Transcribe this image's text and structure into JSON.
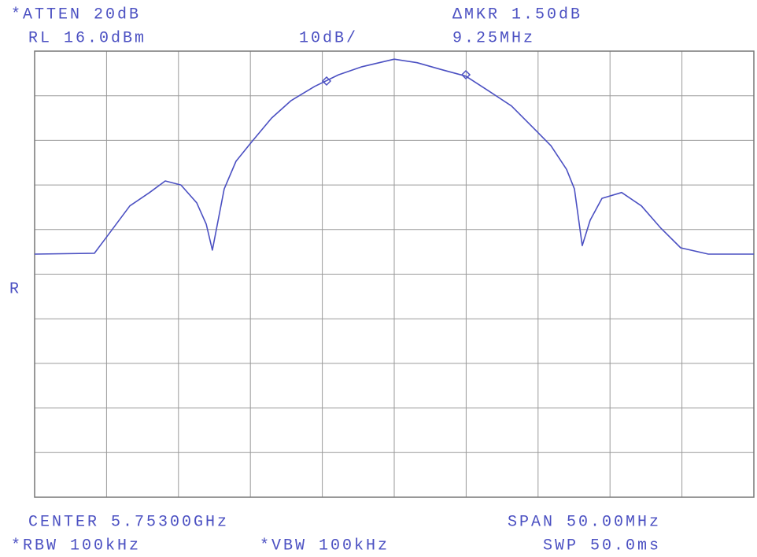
{
  "chart_data": {
    "type": "line",
    "header": {
      "atten": "*ATTEN 20dB",
      "delta_marker": "ΔMKR 1.50dB",
      "ref_level": "RL 16.0dBm",
      "scale": "10dB/",
      "marker_freq": "9.25MHz",
      "ref_mark": "R"
    },
    "footer": {
      "center": "CENTER 5.75300GHz",
      "span": "SPAN 50.00MHz",
      "rbw": "*RBW 100kHz",
      "vbw": "*VBW 100kHz",
      "sweep": "SWP 50.0ms"
    },
    "x": [
      5728,
      5732.16,
      5733.25,
      5734.62,
      5735.99,
      5737.08,
      5738.17,
      5739.27,
      5739.93,
      5740.36,
      5741.18,
      5742.0,
      5743.1,
      5744.47,
      5745.83,
      5747.47,
      5749.12,
      5750.76,
      5753.0,
      5754.59,
      5756.23,
      5757.98,
      5759.51,
      5761.15,
      5762.79,
      5763.89,
      5764.98,
      5765.53,
      5766.07,
      5766.62,
      5767.44,
      5768.81,
      5770.18,
      5771.54,
      5772.91,
      5774.83,
      5778
    ],
    "series": [
      {
        "color": "#4b50c2",
        "values": [
          -29.5,
          -29.3,
          -24.6,
          -18.7,
          -15.7,
          -13.1,
          -14.0,
          -18.0,
          -22.8,
          -28.6,
          -14.9,
          -8.7,
          -4.3,
          1.0,
          4.9,
          8.1,
          10.7,
          12.5,
          14.2,
          13.4,
          11.9,
          10.4,
          7.2,
          3.7,
          -1.6,
          -5.2,
          -10.5,
          -14.9,
          -27.6,
          -21.9,
          -17.0,
          -15.7,
          -18.7,
          -23.7,
          -28.1,
          -29.5,
          -29.5
        ]
      }
    ],
    "xlim": [
      5728,
      5778
    ],
    "ylim": [
      -84,
      16
    ],
    "grid": {
      "x_divisions": 10,
      "y_divisions": 10
    }
  }
}
